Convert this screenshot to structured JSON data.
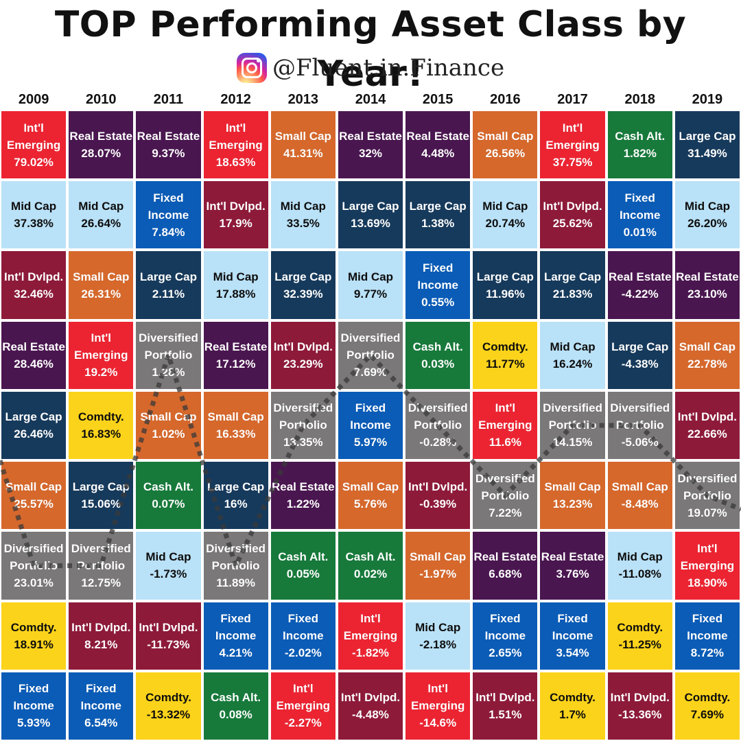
{
  "title": "TOP Performing Asset Class by Year!",
  "handle": "@Fluent.in.Finance",
  "icons": {
    "social": "instagram-icon"
  },
  "colors": {
    "Int'l Emerging": "#ec2432",
    "Real Estate": "#4a1650",
    "Mid Cap": "#b9e1f7",
    "Int'l Dvlpd.": "#8e1a3a",
    "Large Cap": "#163a5c",
    "Small Cap": "#d6682c",
    "Diversified Portfolio": "#7a7878",
    "Comdty.": "#fbd31b",
    "Fixed Income": "#0a5cb7",
    "Cash Alt.": "#177a3b"
  },
  "dark_text_classes": [
    "Mid Cap",
    "Comdty."
  ],
  "path_class": "Diversified Portfolio",
  "chart_data": {
    "type": "table",
    "title": "TOP Performing Asset Class by Year!",
    "years": [
      "2009",
      "2010",
      "2011",
      "2012",
      "2013",
      "2014",
      "2015",
      "2016",
      "2017",
      "2018",
      "2019"
    ],
    "ranking": "rows ordered from top performer (top) to worst performer (bottom)",
    "columns": [
      {
        "year": "2009",
        "cells": [
          {
            "label": "Int'l\nEmerging",
            "cls": "Int'l Emerging",
            "value": "79.02%"
          },
          {
            "label": "Mid Cap",
            "cls": "Mid Cap",
            "value": "37.38%"
          },
          {
            "label": "Int'l Dvlpd.",
            "cls": "Int'l Dvlpd.",
            "value": "32.46%"
          },
          {
            "label": "Real Estate",
            "cls": "Real Estate",
            "value": "28.46%"
          },
          {
            "label": "Large Cap",
            "cls": "Large Cap",
            "value": "26.46%"
          },
          {
            "label": "Small Cap",
            "cls": "Small Cap",
            "value": "25.57%"
          },
          {
            "label": "Diversified\nPortfolio",
            "cls": "Diversified Portfolio",
            "value": "23.01%"
          },
          {
            "label": "Comdty.",
            "cls": "Comdty.",
            "value": "18.91%"
          },
          {
            "label": "Fixed\nIncome",
            "cls": "Fixed Income",
            "value": "5.93%"
          }
        ]
      },
      {
        "year": "2010",
        "cells": [
          {
            "label": "Real Estate",
            "cls": "Real Estate",
            "value": "28.07%"
          },
          {
            "label": "Mid Cap",
            "cls": "Mid Cap",
            "value": "26.64%"
          },
          {
            "label": "Small Cap",
            "cls": "Small Cap",
            "value": "26.31%"
          },
          {
            "label": "Int'l\nEmerging",
            "cls": "Int'l Emerging",
            "value": "19.2%"
          },
          {
            "label": "Comdty.",
            "cls": "Comdty.",
            "value": "16.83%"
          },
          {
            "label": "Large Cap",
            "cls": "Large Cap",
            "value": "15.06%"
          },
          {
            "label": "Diversified\nPortfolio",
            "cls": "Diversified Portfolio",
            "value": "12.75%"
          },
          {
            "label": "Int'l Dvlpd.",
            "cls": "Int'l Dvlpd.",
            "value": "8.21%"
          },
          {
            "label": "Fixed\nIncome",
            "cls": "Fixed Income",
            "value": "6.54%"
          }
        ]
      },
      {
        "year": "2011",
        "cells": [
          {
            "label": "Real Estate",
            "cls": "Real Estate",
            "value": "9.37%"
          },
          {
            "label": "Fixed\nIncome",
            "cls": "Fixed Income",
            "value": "7.84%"
          },
          {
            "label": "Large Cap",
            "cls": "Large Cap",
            "value": "2.11%"
          },
          {
            "label": "Diversified\nPortfolio",
            "cls": "Diversified Portfolio",
            "value": "1.28%"
          },
          {
            "label": "Small Cap",
            "cls": "Small Cap",
            "value": "1.02%"
          },
          {
            "label": "Cash Alt.",
            "cls": "Cash Alt.",
            "value": "0.07%"
          },
          {
            "label": "Mid Cap",
            "cls": "Mid Cap",
            "value": "-1.73%"
          },
          {
            "label": "Int'l Dvlpd.",
            "cls": "Int'l Dvlpd.",
            "value": "-11.73%"
          },
          {
            "label": "Comdty.",
            "cls": "Comdty.",
            "value": "-13.32%"
          }
        ]
      },
      {
        "year": "2012",
        "cells": [
          {
            "label": "Int'l\nEmerging",
            "cls": "Int'l Emerging",
            "value": "18.63%"
          },
          {
            "label": "Int'l Dvlpd.",
            "cls": "Int'l Dvlpd.",
            "value": "17.9%"
          },
          {
            "label": "Mid Cap",
            "cls": "Mid Cap",
            "value": "17.88%"
          },
          {
            "label": "Real Estate",
            "cls": "Real Estate",
            "value": "17.12%"
          },
          {
            "label": "Small Cap",
            "cls": "Small Cap",
            "value": "16.33%"
          },
          {
            "label": "Large Cap",
            "cls": "Large Cap",
            "value": "16%"
          },
          {
            "label": "Diversified\nPortfolio",
            "cls": "Diversified Portfolio",
            "value": "11.89%"
          },
          {
            "label": "Fixed\nIncome",
            "cls": "Fixed Income",
            "value": "4.21%"
          },
          {
            "label": "Cash Alt.",
            "cls": "Cash Alt.",
            "value": "0.08%"
          }
        ]
      },
      {
        "year": "2013",
        "cells": [
          {
            "label": "Small Cap",
            "cls": "Small Cap",
            "value": "41.31%"
          },
          {
            "label": "Mid Cap",
            "cls": "Mid Cap",
            "value": "33.5%"
          },
          {
            "label": "Large Cap",
            "cls": "Large Cap",
            "value": "32.39%"
          },
          {
            "label": "Int'l Dvlpd.",
            "cls": "Int'l Dvlpd.",
            "value": "23.29%"
          },
          {
            "label": "Diversified\nPortfolio",
            "cls": "Diversified Portfolio",
            "value": "13.35%"
          },
          {
            "label": "Real Estate",
            "cls": "Real Estate",
            "value": "1.22%"
          },
          {
            "label": "Cash Alt.",
            "cls": "Cash Alt.",
            "value": "0.05%"
          },
          {
            "label": "Fixed\nIncome",
            "cls": "Fixed Income",
            "value": "-2.02%"
          },
          {
            "label": "Int'l\nEmerging",
            "cls": "Int'l Emerging",
            "value": "-2.27%"
          }
        ]
      },
      {
        "year": "2014",
        "cells": [
          {
            "label": "Real Estate",
            "cls": "Real Estate",
            "value": "32%"
          },
          {
            "label": "Large Cap",
            "cls": "Large Cap",
            "value": "13.69%"
          },
          {
            "label": "Mid Cap",
            "cls": "Mid Cap",
            "value": "9.77%"
          },
          {
            "label": "Diversified\nPortfolio",
            "cls": "Diversified Portfolio",
            "value": "7.69%"
          },
          {
            "label": "Fixed\nIncome",
            "cls": "Fixed Income",
            "value": "5.97%"
          },
          {
            "label": "Small Cap",
            "cls": "Small Cap",
            "value": "5.76%"
          },
          {
            "label": "Cash Alt.",
            "cls": "Cash Alt.",
            "value": "0.02%"
          },
          {
            "label": "Int'l\nEmerging",
            "cls": "Int'l Emerging",
            "value": "-1.82%"
          },
          {
            "label": "Int'l Dvlpd.",
            "cls": "Int'l Dvlpd.",
            "value": "-4.48%"
          }
        ]
      },
      {
        "year": "2015",
        "cells": [
          {
            "label": "Real Estate",
            "cls": "Real Estate",
            "value": "4.48%"
          },
          {
            "label": "Large Cap",
            "cls": "Large Cap",
            "value": "1.38%"
          },
          {
            "label": "Fixed\nIncome",
            "cls": "Fixed Income",
            "value": "0.55%"
          },
          {
            "label": "Cash Alt.",
            "cls": "Cash Alt.",
            "value": "0.03%"
          },
          {
            "label": "Diversified\nPortfolio",
            "cls": "Diversified Portfolio",
            "value": "-0.28%"
          },
          {
            "label": "Int'l Dvlpd.",
            "cls": "Int'l Dvlpd.",
            "value": "-0.39%"
          },
          {
            "label": "Small Cap",
            "cls": "Small Cap",
            "value": "-1.97%"
          },
          {
            "label": "Mid Cap",
            "cls": "Mid Cap",
            "value": "-2.18%"
          },
          {
            "label": "Int'l\nEmerging",
            "cls": "Int'l Emerging",
            "value": "-14.6%"
          }
        ]
      },
      {
        "year": "2016",
        "cells": [
          {
            "label": "Small Cap",
            "cls": "Small Cap",
            "value": "26.56%"
          },
          {
            "label": "Mid Cap",
            "cls": "Mid Cap",
            "value": "20.74%"
          },
          {
            "label": "Large Cap",
            "cls": "Large Cap",
            "value": "11.96%"
          },
          {
            "label": "Comdty.",
            "cls": "Comdty.",
            "value": "11.77%"
          },
          {
            "label": "Int'l\nEmerging",
            "cls": "Int'l Emerging",
            "value": "11.6%"
          },
          {
            "label": "Diversified\nPortfolio",
            "cls": "Diversified Portfolio",
            "value": "7.22%"
          },
          {
            "label": "Real Estate",
            "cls": "Real Estate",
            "value": "6.68%"
          },
          {
            "label": "Fixed\nIncome",
            "cls": "Fixed Income",
            "value": "2.65%"
          },
          {
            "label": "Int'l Dvlpd.",
            "cls": "Int'l Dvlpd.",
            "value": "1.51%"
          }
        ]
      },
      {
        "year": "2017",
        "cells": [
          {
            "label": "Int'l\nEmerging",
            "cls": "Int'l Emerging",
            "value": "37.75%"
          },
          {
            "label": "Int'l Dvlpd.",
            "cls": "Int'l Dvlpd.",
            "value": "25.62%"
          },
          {
            "label": "Large Cap",
            "cls": "Large Cap",
            "value": "21.83%"
          },
          {
            "label": "Mid Cap",
            "cls": "Mid Cap",
            "value": "16.24%"
          },
          {
            "label": "Diversified\nPortfolio",
            "cls": "Diversified Portfolio",
            "value": "14.15%"
          },
          {
            "label": "Small Cap",
            "cls": "Small Cap",
            "value": "13.23%"
          },
          {
            "label": "Real Estate",
            "cls": "Real Estate",
            "value": "3.76%"
          },
          {
            "label": "Fixed\nIncome",
            "cls": "Fixed Income",
            "value": "3.54%"
          },
          {
            "label": "Comdty.",
            "cls": "Comdty.",
            "value": "1.7%"
          }
        ]
      },
      {
        "year": "2018",
        "cells": [
          {
            "label": "Cash Alt.",
            "cls": "Cash Alt.",
            "value": "1.82%"
          },
          {
            "label": "Fixed\nIncome",
            "cls": "Fixed Income",
            "value": "0.01%"
          },
          {
            "label": "Real Estate",
            "cls": "Real Estate",
            "value": "-4.22%"
          },
          {
            "label": "Large Cap",
            "cls": "Large Cap",
            "value": "-4.38%"
          },
          {
            "label": "Diversified\nPortfolio",
            "cls": "Diversified Portfolio",
            "value": "-5.06%"
          },
          {
            "label": "Small Cap",
            "cls": "Small Cap",
            "value": "-8.48%"
          },
          {
            "label": "Mid Cap",
            "cls": "Mid Cap",
            "value": "-11.08%"
          },
          {
            "label": "Comdty.",
            "cls": "Comdty.",
            "value": "-11.25%"
          },
          {
            "label": "Int'l Dvlpd.",
            "cls": "Int'l Dvlpd.",
            "value": "-13.36%"
          }
        ]
      },
      {
        "year": "2019",
        "cells": [
          {
            "label": "Large Cap",
            "cls": "Large Cap",
            "value": "31.49%"
          },
          {
            "label": "Mid Cap",
            "cls": "Mid Cap",
            "value": "26.20%"
          },
          {
            "label": "Real Estate",
            "cls": "Real Estate",
            "value": "23.10%"
          },
          {
            "label": "Small Cap",
            "cls": "Small Cap",
            "value": "22.78%"
          },
          {
            "label": "Int'l Dvlpd.",
            "cls": "Int'l Dvlpd.",
            "value": "22.66%"
          },
          {
            "label": "Diversified\nPortfolio",
            "cls": "Diversified Portfolio",
            "value": "19.07%"
          },
          {
            "label": "Int'l\nEmerging",
            "cls": "Int'l Emerging",
            "value": "18.90%"
          },
          {
            "label": "Fixed\nIncome",
            "cls": "Fixed Income",
            "value": "8.72%"
          },
          {
            "label": "Comdty.",
            "cls": "Comdty.",
            "value": "7.69%"
          }
        ]
      }
    ]
  }
}
